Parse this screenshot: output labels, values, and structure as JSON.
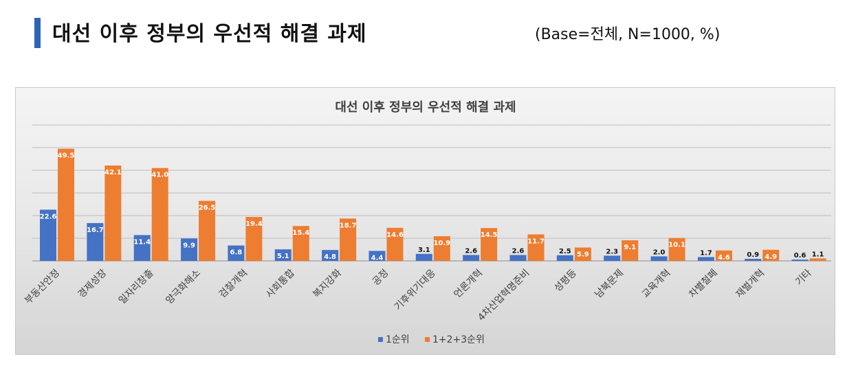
{
  "header": {
    "title": "대선 이후 정부의 우선적 해결 과제",
    "base_note": "(Base=전체, N=1000, %)"
  },
  "colors": {
    "accent": "#2e63b8",
    "series1": "#4472c4",
    "series2": "#ed7d31"
  },
  "chart_data": {
    "type": "bar",
    "title": "대선 이후 정부의 우선적 해결 과제",
    "xlabel": "",
    "ylabel": "",
    "ylim": [
      0,
      60
    ],
    "grid": true,
    "legend_position": "bottom",
    "categories": [
      "부동산안정",
      "경제성장",
      "일자리창출",
      "양극화해소",
      "검찰개혁",
      "사회통합",
      "복지강화",
      "공정",
      "기후위기대응",
      "언론개혁",
      "4차산업혁명준비",
      "성평등",
      "남북문제",
      "교육개혁",
      "차별철폐",
      "재벌개혁",
      "기타"
    ],
    "series": [
      {
        "name": "1순위",
        "color": "#4472c4",
        "values": [
          22.6,
          16.7,
          11.4,
          9.9,
          6.8,
          5.1,
          4.8,
          4.4,
          3.1,
          2.6,
          2.6,
          2.5,
          2.3,
          2.0,
          1.7,
          0.9,
          0.6
        ],
        "labels": [
          "22.6",
          "16.7",
          "11.4",
          "9.9",
          "6.8",
          "5.1",
          "4.8",
          "4.4",
          "3.1",
          "2.6",
          "2.6",
          "2.5",
          "2.3",
          "2.0",
          "1.7",
          "0.9",
          "0.6"
        ]
      },
      {
        "name": "1+2+3순위",
        "color": "#ed7d31",
        "values": [
          49.5,
          42.1,
          41.0,
          26.5,
          19.4,
          15.4,
          18.7,
          14.6,
          10.9,
          14.5,
          11.7,
          5.9,
          9.1,
          10.1,
          4.6,
          4.9,
          1.1
        ],
        "labels": [
          "49.5",
          "42.1",
          "41.0",
          "26.5",
          "19.4",
          "15.4",
          "18.7",
          "14.6",
          "10.9",
          "14.5",
          "11.7",
          "5.9",
          "9.1",
          "10.1",
          "4.6",
          "4.9",
          "1.1"
        ]
      }
    ]
  }
}
